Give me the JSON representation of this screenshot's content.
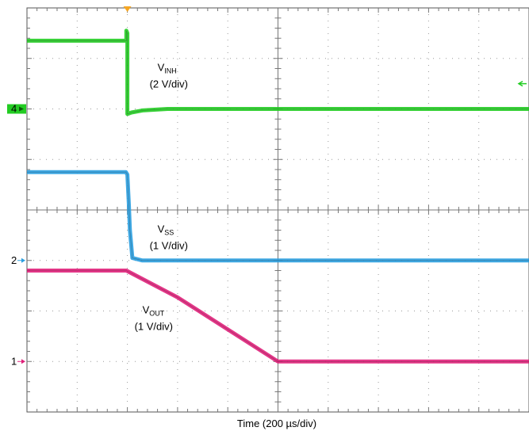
{
  "chart_data": {
    "type": "line",
    "title": "",
    "xlabel": "Time (200 µs/div)",
    "ylabel": "",
    "grid": true,
    "x_divisions": 10,
    "y_divisions": 8,
    "x_unit": "div",
    "trigger_marker": {
      "x": 2.0,
      "color": "#f5a623"
    },
    "channel_markers": [
      {
        "label": "4",
        "y": 6.0,
        "color": "#22cc22",
        "style": "box"
      },
      {
        "label": "2",
        "y": 3.0,
        "color": "#2a9fe0",
        "style": "arrow"
      },
      {
        "label": "1",
        "y": 1.0,
        "color": "#e0207a",
        "style": "arrow"
      }
    ],
    "offscreen_marker": {
      "y": 6.5,
      "color": "#22cc22"
    },
    "series": [
      {
        "name_main": "V",
        "name_sub": "INH",
        "scale": "(2 V/div)",
        "color": "#22cc22",
        "label_pos": {
          "x": 2.6,
          "y": 6.75
        },
        "x": [
          0,
          1.98,
          1.98,
          2.0,
          2.0,
          2.08,
          2.3,
          2.8,
          3.5,
          10
        ],
        "y": [
          7.35,
          7.35,
          7.55,
          7.5,
          5.9,
          5.93,
          5.97,
          6.0,
          6.0,
          6.0
        ]
      },
      {
        "name_main": "V",
        "name_sub": "SS",
        "scale": "(1 V/div)",
        "color": "#2a9fe0",
        "label_pos": {
          "x": 2.6,
          "y": 3.55
        },
        "x": [
          0,
          1.97,
          2.0,
          2.03,
          2.05,
          2.1,
          2.3,
          3.0,
          10
        ],
        "y": [
          4.75,
          4.75,
          4.7,
          4.1,
          3.6,
          3.05,
          3.0,
          3.0,
          3.0
        ]
      },
      {
        "name_main": "V",
        "name_sub": "OUT",
        "scale": "(1 V/div)",
        "color": "#e0207a",
        "label_pos": {
          "x": 2.3,
          "y": 1.95
        },
        "x": [
          0,
          1.98,
          3.0,
          5.0,
          10
        ],
        "y": [
          2.8,
          2.8,
          2.27,
          1.0,
          1.0
        ]
      }
    ]
  }
}
